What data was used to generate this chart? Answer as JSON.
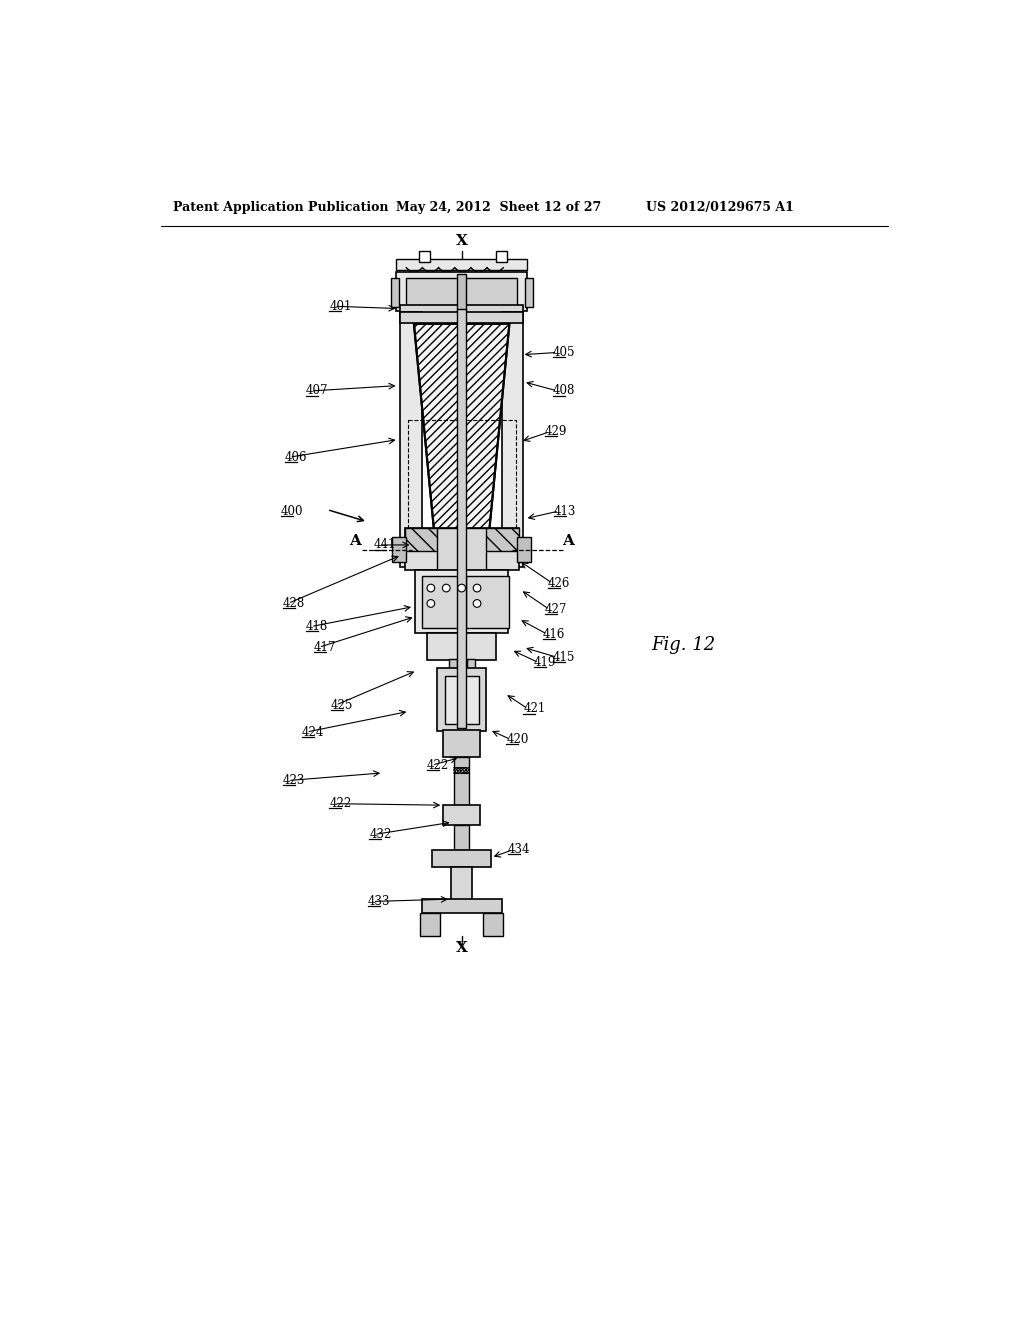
{
  "background_color": "#ffffff",
  "header_left": "Patent Application Publication",
  "header_mid": "May 24, 2012  Sheet 12 of 27",
  "header_right": "US 2012/0129675 A1",
  "fig_label": "Fig. 12",
  "line_color": "#000000"
}
